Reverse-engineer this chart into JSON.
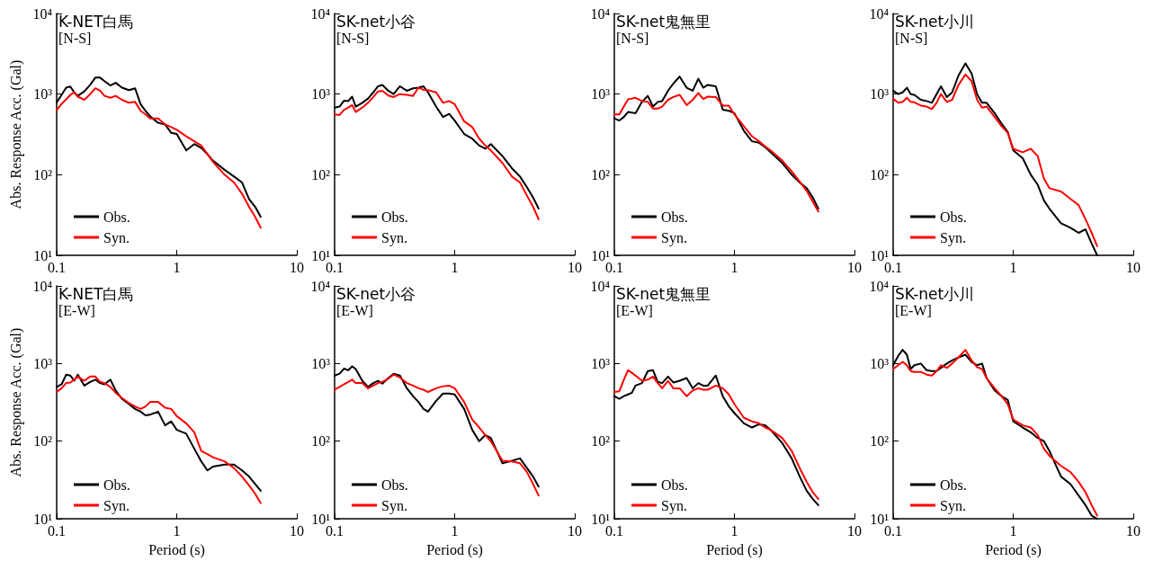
{
  "chart_data": [
    {
      "type": "line",
      "title": "K-NET白馬",
      "subtitle": "[N-S]",
      "ylabel": "Abs. Response Acc. (Gal)",
      "x": [
        0.1,
        0.11,
        0.12,
        0.13,
        0.14,
        0.15,
        0.17,
        0.19,
        0.21,
        0.23,
        0.25,
        0.28,
        0.31,
        0.35,
        0.4,
        0.45,
        0.5,
        0.55,
        0.6,
        0.7,
        0.8,
        0.9,
        1,
        1.2,
        1.4,
        1.6,
        1.8,
        2,
        2.5,
        3,
        3.5,
        4,
        4.5,
        5
      ],
      "series": [
        {
          "name": "Obs.",
          "color": "#000000",
          "values": [
            790,
            980,
            1200,
            1240,
            1050,
            950,
            1080,
            1300,
            1600,
            1600,
            1450,
            1280,
            1380,
            1200,
            1120,
            1180,
            750,
            620,
            530,
            440,
            420,
            330,
            320,
            200,
            240,
            215,
            180,
            150,
            115,
            95,
            80,
            50,
            40,
            30
          ]
        },
        {
          "name": "Syn.",
          "color": "#ff0000",
          "values": [
            630,
            760,
            860,
            980,
            1050,
            930,
            850,
            1000,
            1180,
            1100,
            950,
            900,
            950,
            850,
            780,
            800,
            620,
            560,
            500,
            500,
            420,
            390,
            360,
            300,
            260,
            230,
            180,
            145,
            100,
            80,
            58,
            40,
            30,
            22
          ]
        }
      ],
      "xlim": [
        0.1,
        10
      ],
      "ylim": [
        10,
        10000
      ],
      "xticks": [
        0.1,
        1,
        10
      ],
      "yticks": [
        {
          "value": 10,
          "label": "10¹"
        },
        {
          "value": 100,
          "label": "10²"
        },
        {
          "value": 1000,
          "label": "10³"
        },
        {
          "value": 10000,
          "label": "10⁴"
        }
      ],
      "log": "xy",
      "grid": false,
      "legend": "bottom left",
      "marker": "none",
      "line_style": "solid"
    },
    {
      "type": "line",
      "title": "SK-net小谷",
      "subtitle": "[N-S]",
      "x": [
        0.1,
        0.11,
        0.12,
        0.13,
        0.14,
        0.15,
        0.17,
        0.19,
        0.21,
        0.23,
        0.25,
        0.28,
        0.31,
        0.35,
        0.4,
        0.45,
        0.5,
        0.55,
        0.6,
        0.7,
        0.8,
        0.9,
        1,
        1.2,
        1.4,
        1.6,
        1.8,
        2,
        2.5,
        3,
        3.5,
        4,
        4.5,
        5
      ],
      "series": [
        {
          "name": "Obs.",
          "color": "#000000",
          "values": [
            680,
            700,
            830,
            820,
            930,
            700,
            780,
            880,
            1050,
            1250,
            1300,
            1100,
            1000,
            1250,
            1100,
            1180,
            1200,
            1250,
            1050,
            700,
            520,
            570,
            470,
            320,
            280,
            230,
            210,
            240,
            170,
            120,
            95,
            70,
            52,
            38
          ]
        },
        {
          "name": "Syn.",
          "color": "#ff0000",
          "values": [
            560,
            550,
            640,
            680,
            730,
            600,
            680,
            780,
            920,
            1080,
            1100,
            960,
            920,
            1000,
            980,
            950,
            1200,
            1130,
            1120,
            1050,
            780,
            820,
            750,
            460,
            390,
            280,
            230,
            200,
            140,
            95,
            80,
            55,
            40,
            28
          ]
        }
      ],
      "xlim": [
        0.1,
        10
      ],
      "ylim": [
        10,
        10000
      ],
      "xticks": [
        0.1,
        1,
        10
      ],
      "yticks": [
        {
          "value": 10,
          "label": "10¹"
        },
        {
          "value": 100,
          "label": "10²"
        },
        {
          "value": 1000,
          "label": "10³"
        },
        {
          "value": 10000,
          "label": "10⁴"
        }
      ],
      "log": "xy",
      "grid": false,
      "legend": "bottom left",
      "marker": "none",
      "line_style": "solid"
    },
    {
      "type": "line",
      "title": "SK-net鬼無里",
      "subtitle": "[N-S]",
      "x": [
        0.1,
        0.11,
        0.12,
        0.13,
        0.14,
        0.15,
        0.17,
        0.19,
        0.21,
        0.23,
        0.25,
        0.28,
        0.31,
        0.35,
        0.4,
        0.45,
        0.5,
        0.55,
        0.6,
        0.7,
        0.8,
        0.9,
        1,
        1.2,
        1.4,
        1.6,
        1.8,
        2,
        2.5,
        3,
        3.5,
        4,
        4.5,
        5
      ],
      "series": [
        {
          "name": "Obs.",
          "color": "#000000",
          "values": [
            500,
            470,
            520,
            600,
            590,
            580,
            800,
            950,
            700,
            800,
            820,
            1100,
            1350,
            1650,
            1200,
            1100,
            1550,
            1200,
            1300,
            1250,
            640,
            620,
            580,
            350,
            260,
            250,
            220,
            190,
            140,
            100,
            80,
            68,
            52,
            38
          ]
        },
        {
          "name": "Syn.",
          "color": "#ff0000",
          "values": [
            560,
            560,
            700,
            860,
            880,
            900,
            820,
            800,
            660,
            660,
            700,
            850,
            920,
            980,
            730,
            850,
            1030,
            870,
            930,
            920,
            720,
            720,
            560,
            400,
            300,
            260,
            225,
            200,
            150,
            110,
            82,
            63,
            46,
            35
          ]
        }
      ],
      "xlim": [
        0.1,
        10
      ],
      "ylim": [
        10,
        10000
      ],
      "xticks": [
        0.1,
        1,
        10
      ],
      "yticks": [
        {
          "value": 10,
          "label": "10¹"
        },
        {
          "value": 100,
          "label": "10²"
        },
        {
          "value": 1000,
          "label": "10³"
        },
        {
          "value": 10000,
          "label": "10⁴"
        }
      ],
      "log": "xy",
      "grid": false,
      "legend": "bottom left",
      "marker": "none",
      "line_style": "solid"
    },
    {
      "type": "line",
      "title": "SK-net小川",
      "subtitle": "[N-S]",
      "x": [
        0.1,
        0.11,
        0.12,
        0.13,
        0.14,
        0.15,
        0.17,
        0.19,
        0.21,
        0.23,
        0.25,
        0.28,
        0.31,
        0.35,
        0.4,
        0.45,
        0.5,
        0.55,
        0.6,
        0.7,
        0.8,
        0.9,
        1,
        1.2,
        1.4,
        1.6,
        1.8,
        2,
        2.5,
        3,
        3.5,
        4,
        4.5,
        5
      ],
      "series": [
        {
          "name": "Obs.",
          "color": "#000000",
          "values": [
            1100,
            1000,
            1050,
            1200,
            1000,
            980,
            850,
            820,
            780,
            1000,
            1250,
            920,
            1050,
            1700,
            2400,
            1800,
            1000,
            780,
            780,
            580,
            430,
            340,
            200,
            160,
            100,
            75,
            48,
            38,
            25,
            22,
            19,
            21,
            14,
            10
          ]
        },
        {
          "name": "Syn.",
          "color": "#ff0000",
          "values": [
            880,
            780,
            800,
            900,
            800,
            790,
            720,
            700,
            650,
            780,
            1000,
            800,
            850,
            1300,
            1750,
            1450,
            850,
            680,
            700,
            520,
            400,
            330,
            210,
            190,
            210,
            170,
            90,
            68,
            62,
            50,
            42,
            28,
            19,
            13
          ]
        }
      ],
      "xlim": [
        0.1,
        10
      ],
      "ylim": [
        10,
        10000
      ],
      "xticks": [
        0.1,
        1,
        10
      ],
      "yticks": [
        {
          "value": 10,
          "label": "10¹"
        },
        {
          "value": 100,
          "label": "10²"
        },
        {
          "value": 1000,
          "label": "10³"
        },
        {
          "value": 10000,
          "label": "10⁴"
        }
      ],
      "log": "xy",
      "grid": false,
      "legend": "bottom left",
      "marker": "none",
      "line_style": "solid"
    },
    {
      "type": "line",
      "title": "K-NET白馬",
      "subtitle": "[E-W]",
      "xlabel": "Period (s)",
      "ylabel": "Abs. Response Acc. (Gal)",
      "x": [
        0.1,
        0.11,
        0.12,
        0.13,
        0.14,
        0.15,
        0.17,
        0.19,
        0.21,
        0.23,
        0.25,
        0.28,
        0.31,
        0.35,
        0.4,
        0.45,
        0.5,
        0.55,
        0.6,
        0.7,
        0.8,
        0.9,
        1,
        1.2,
        1.4,
        1.6,
        1.8,
        2,
        2.5,
        3,
        3.5,
        4,
        4.5,
        5
      ],
      "series": [
        {
          "name": "Obs.",
          "color": "#000000",
          "values": [
            500,
            540,
            720,
            700,
            600,
            720,
            520,
            580,
            620,
            560,
            540,
            620,
            450,
            350,
            300,
            260,
            240,
            215,
            220,
            240,
            160,
            180,
            140,
            125,
            80,
            55,
            42,
            47,
            50,
            50,
            42,
            35,
            28,
            23
          ]
        },
        {
          "name": "Syn.",
          "color": "#ff0000",
          "values": [
            430,
            480,
            560,
            570,
            620,
            680,
            600,
            680,
            680,
            580,
            560,
            500,
            420,
            360,
            310,
            280,
            260,
            280,
            320,
            320,
            270,
            260,
            210,
            170,
            130,
            75,
            68,
            62,
            55,
            45,
            35,
            27,
            21,
            16
          ]
        }
      ],
      "xlim": [
        0.1,
        10
      ],
      "ylim": [
        10,
        10000
      ],
      "xticks": [
        0.1,
        1,
        10
      ],
      "yticks": [
        {
          "value": 10,
          "label": "10¹"
        },
        {
          "value": 100,
          "label": "10²"
        },
        {
          "value": 1000,
          "label": "10³"
        },
        {
          "value": 10000,
          "label": "10⁴"
        }
      ],
      "log": "xy",
      "grid": false,
      "legend": "bottom left",
      "marker": "none",
      "line_style": "solid"
    },
    {
      "type": "line",
      "title": "SK-net小谷",
      "subtitle": "[E-W]",
      "xlabel": "Period (s)",
      "x": [
        0.1,
        0.11,
        0.12,
        0.13,
        0.14,
        0.15,
        0.17,
        0.19,
        0.21,
        0.23,
        0.25,
        0.28,
        0.31,
        0.35,
        0.4,
        0.45,
        0.5,
        0.55,
        0.6,
        0.7,
        0.8,
        0.9,
        1,
        1.2,
        1.4,
        1.6,
        1.8,
        2,
        2.5,
        3,
        3.5,
        4,
        4.5,
        5
      ],
      "series": [
        {
          "name": "Obs.",
          "color": "#000000",
          "values": [
            700,
            740,
            860,
            820,
            920,
            850,
            600,
            500,
            560,
            600,
            550,
            650,
            740,
            700,
            480,
            380,
            320,
            260,
            240,
            330,
            410,
            410,
            400,
            260,
            140,
            100,
            120,
            110,
            52,
            56,
            60,
            45,
            35,
            26
          ]
        },
        {
          "name": "Syn.",
          "color": "#ff0000",
          "values": [
            460,
            500,
            540,
            580,
            620,
            560,
            560,
            480,
            520,
            560,
            580,
            640,
            720,
            660,
            560,
            520,
            480,
            460,
            430,
            480,
            510,
            520,
            480,
            320,
            190,
            150,
            120,
            100,
            56,
            55,
            52,
            40,
            28,
            20
          ]
        }
      ],
      "xlim": [
        0.1,
        10
      ],
      "ylim": [
        10,
        10000
      ],
      "xticks": [
        0.1,
        1,
        10
      ],
      "yticks": [
        {
          "value": 10,
          "label": "10¹"
        },
        {
          "value": 100,
          "label": "10²"
        },
        {
          "value": 1000,
          "label": "10³"
        },
        {
          "value": 10000,
          "label": "10⁴"
        }
      ],
      "log": "xy",
      "grid": false,
      "legend": "bottom left",
      "marker": "none",
      "line_style": "solid"
    },
    {
      "type": "line",
      "title": "SK-net鬼無里",
      "subtitle": "[E-W]",
      "xlabel": "Period (s)",
      "x": [
        0.1,
        0.11,
        0.12,
        0.13,
        0.14,
        0.15,
        0.17,
        0.19,
        0.21,
        0.23,
        0.25,
        0.28,
        0.31,
        0.35,
        0.4,
        0.45,
        0.5,
        0.55,
        0.6,
        0.7,
        0.8,
        0.9,
        1,
        1.2,
        1.4,
        1.6,
        1.8,
        2,
        2.5,
        3,
        3.5,
        4,
        4.5,
        5
      ],
      "series": [
        {
          "name": "Obs.",
          "color": "#000000",
          "values": [
            380,
            350,
            380,
            400,
            420,
            520,
            560,
            800,
            820,
            580,
            560,
            680,
            570,
            600,
            650,
            480,
            560,
            520,
            520,
            700,
            380,
            280,
            230,
            170,
            150,
            165,
            160,
            140,
            95,
            60,
            35,
            23,
            18,
            15
          ]
        },
        {
          "name": "Syn.",
          "color": "#ff0000",
          "values": [
            430,
            440,
            620,
            820,
            760,
            700,
            600,
            620,
            680,
            560,
            480,
            600,
            480,
            480,
            380,
            450,
            480,
            460,
            460,
            520,
            480,
            400,
            300,
            200,
            180,
            170,
            150,
            140,
            110,
            75,
            45,
            30,
            22,
            18
          ]
        }
      ],
      "xlim": [
        0.1,
        10
      ],
      "ylim": [
        10,
        10000
      ],
      "xticks": [
        0.1,
        1,
        10
      ],
      "yticks": [
        {
          "value": 10,
          "label": "10¹"
        },
        {
          "value": 100,
          "label": "10²"
        },
        {
          "value": 1000,
          "label": "10³"
        },
        {
          "value": 10000,
          "label": "10⁴"
        }
      ],
      "log": "xy",
      "grid": false,
      "legend": "bottom left",
      "marker": "none",
      "line_style": "solid"
    },
    {
      "type": "line",
      "title": "SK-net小川",
      "subtitle": "[E-W]",
      "xlabel": "Period (s)",
      "x": [
        0.1,
        0.11,
        0.12,
        0.13,
        0.14,
        0.15,
        0.17,
        0.19,
        0.21,
        0.23,
        0.25,
        0.28,
        0.31,
        0.35,
        0.4,
        0.45,
        0.5,
        0.55,
        0.6,
        0.7,
        0.8,
        0.9,
        1,
        1.2,
        1.4,
        1.6,
        1.8,
        2,
        2.5,
        3,
        3.5,
        4,
        4.5,
        5
      ],
      "series": [
        {
          "name": "Obs.",
          "color": "#000000",
          "values": [
            950,
            1250,
            1500,
            1300,
            850,
            950,
            1000,
            820,
            800,
            800,
            880,
            1000,
            1100,
            1200,
            1300,
            1050,
            950,
            1000,
            650,
            450,
            380,
            340,
            180,
            150,
            130,
            110,
            100,
            75,
            35,
            28,
            20,
            15,
            11,
            10
          ]
        },
        {
          "name": "Syn.",
          "color": "#ff0000",
          "values": [
            850,
            950,
            1050,
            950,
            800,
            780,
            780,
            720,
            700,
            800,
            950,
            880,
            1000,
            1200,
            1500,
            1100,
            900,
            850,
            650,
            480,
            380,
            300,
            190,
            160,
            150,
            120,
            80,
            65,
            48,
            40,
            30,
            22,
            15,
            11
          ]
        }
      ],
      "xlim": [
        0.1,
        10
      ],
      "ylim": [
        10,
        10000
      ],
      "xticks": [
        0.1,
        1,
        10
      ],
      "yticks": [
        {
          "value": 10,
          "label": "10¹"
        },
        {
          "value": 100,
          "label": "10²"
        },
        {
          "value": 1000,
          "label": "10³"
        },
        {
          "value": 10000,
          "label": "10⁴"
        }
      ],
      "log": "xy",
      "grid": false,
      "legend": "bottom left",
      "marker": "none",
      "line_style": "solid"
    }
  ]
}
